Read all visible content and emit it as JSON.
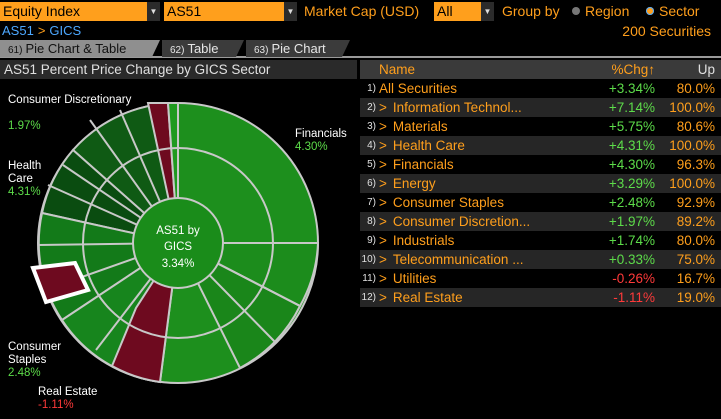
{
  "toolbar": {
    "index_type": "Equity Index",
    "ticker": "AS51",
    "market_cap_label": "Market Cap (USD)",
    "market_cap_value": "All",
    "group_by_label": "Group by",
    "region_label": "Region",
    "sector_label": "Sector",
    "selected_group": "Sector",
    "securities_count": "200 Securities"
  },
  "breadcrumb": {
    "root": "AS51",
    "separator": ">",
    "current": "GICS"
  },
  "tabs": [
    {
      "num": "61)",
      "label": "Pie Chart & Table",
      "active": true
    },
    {
      "num": "62)",
      "label": "Table",
      "active": false
    },
    {
      "num": "63)",
      "label": "Pie Chart",
      "active": false
    }
  ],
  "chart": {
    "title": "AS51 Percent Price Change by GICS Sector",
    "center_line1": "AS51 by",
    "center_line2": "GICS",
    "center_pct": "3.34%",
    "colors": {
      "positive": "#1f9a1f",
      "negative": "#7a0a22",
      "border": "#c8c8c8"
    },
    "labels": [
      {
        "name": "Consumer Discretionary",
        "pct": "1.97%",
        "negative": false
      },
      {
        "name": "Financials",
        "pct": "4.30%",
        "negative": false
      },
      {
        "name": "Health Care",
        "pct": "4.31%",
        "negative": false
      },
      {
        "name": "Consumer Staples",
        "pct": "2.48%",
        "negative": false
      },
      {
        "name": "Real Estate",
        "pct": "-1.11%",
        "negative": true
      }
    ]
  },
  "table": {
    "headers": {
      "name": "Name",
      "chg": "%Chg↑",
      "up": "Up"
    },
    "rows": [
      {
        "idx": "1)",
        "chev": "",
        "name": "All Securities",
        "chg": "+3.34%",
        "up": "80.0%",
        "negative": false
      },
      {
        "idx": "2)",
        "chev": ">",
        "name": "Information Technol...",
        "chg": "+7.14%",
        "up": "100.0%",
        "negative": false
      },
      {
        "idx": "3)",
        "chev": ">",
        "name": "Materials",
        "chg": "+5.75%",
        "up": "80.6%",
        "negative": false
      },
      {
        "idx": "4)",
        "chev": ">",
        "name": "Health Care",
        "chg": "+4.31%",
        "up": "100.0%",
        "negative": false
      },
      {
        "idx": "5)",
        "chev": ">",
        "name": "Financials",
        "chg": "+4.30%",
        "up": "96.3%",
        "negative": false
      },
      {
        "idx": "6)",
        "chev": ">",
        "name": "Energy",
        "chg": "+3.29%",
        "up": "100.0%",
        "negative": false
      },
      {
        "idx": "7)",
        "chev": ">",
        "name": "Consumer Staples",
        "chg": "+2.48%",
        "up": "92.9%",
        "negative": false
      },
      {
        "idx": "8)",
        "chev": ">",
        "name": "Consumer Discretion...",
        "chg": "+1.97%",
        "up": "89.2%",
        "negative": false
      },
      {
        "idx": "9)",
        "chev": ">",
        "name": "Industrials",
        "chg": "+1.74%",
        "up": "80.0%",
        "negative": false
      },
      {
        "idx": "10)",
        "chev": ">",
        "name": "Telecommunication ...",
        "chg": "+0.33%",
        "up": "75.0%",
        "negative": false
      },
      {
        "idx": "11)",
        "chev": ">",
        "name": "Utilities",
        "chg": "-0.26%",
        "up": "16.7%",
        "negative": true
      },
      {
        "idx": "12)",
        "chev": ">",
        "name": "Real Estate",
        "chg": "-1.11%",
        "up": "19.0%",
        "negative": true
      }
    ]
  }
}
